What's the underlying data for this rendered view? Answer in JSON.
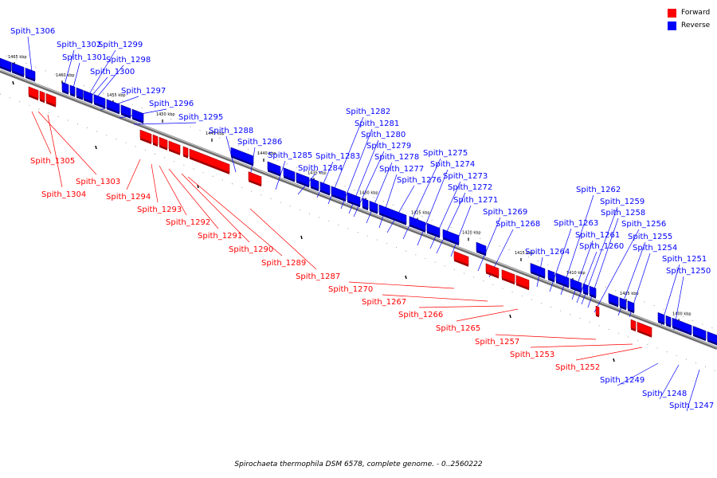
{
  "title": "Spirochaeta thermophila DSM 6578, complete genome. - 0..2560222",
  "legend": {
    "forward": {
      "label": "Forward",
      "color": "#ff0000"
    },
    "reverse": {
      "label": "Reverse",
      "color": "#0000ff"
    }
  },
  "ticks": [
    "1465 kbp",
    "1460 kbp",
    "1455 kbp",
    "1450 kbp",
    "1445 kbp",
    "1440 kbp",
    "1435 kbp",
    "1430 kbp",
    "1425 kbp",
    "1420 kbp",
    "1415 kbp",
    "1410 kbp",
    "1405 kbp",
    "1400 kbp"
  ],
  "reverse_genes": [
    "Spith_1306",
    "Spith_1302",
    "Spith_1301",
    "Spith_1299",
    "Spith_1298",
    "Spith_1300",
    "Spith_1297",
    "Spith_1296",
    "Spith_1295",
    "Spith_1288",
    "Spith_1286",
    "Spith_1285",
    "Spith_1284",
    "Spith_1283",
    "Spith_1282",
    "Spith_1281",
    "Spith_1280",
    "Spith_1279",
    "Spith_1278",
    "Spith_1277",
    "Spith_1276",
    "Spith_1275",
    "Spith_1274",
    "Spith_1273",
    "Spith_1272",
    "Spith_1271",
    "Spith_1269",
    "Spith_1268",
    "Spith_1264",
    "Spith_1263",
    "Spith_1262",
    "Spith_1261",
    "Spith_1260",
    "Spith_1259",
    "Spith_1258",
    "Spith_1256",
    "Spith_1255",
    "Spith_1254",
    "Spith_1251",
    "Spith_1250",
    "Spith_1249",
    "Spith_1248",
    "Spith_1247"
  ],
  "forward_genes": [
    "Spith_1305",
    "Spith_1303",
    "Spith_1304",
    "Spith_1294",
    "Spith_1293",
    "Spith_1292",
    "Spith_1291",
    "Spith_1290",
    "Spith_1289",
    "Spith_1287",
    "Spith_1270",
    "Spith_1267",
    "Spith_1266",
    "Spith_1265",
    "Spith_1257",
    "Spith_1253",
    "Spith_1252"
  ]
}
